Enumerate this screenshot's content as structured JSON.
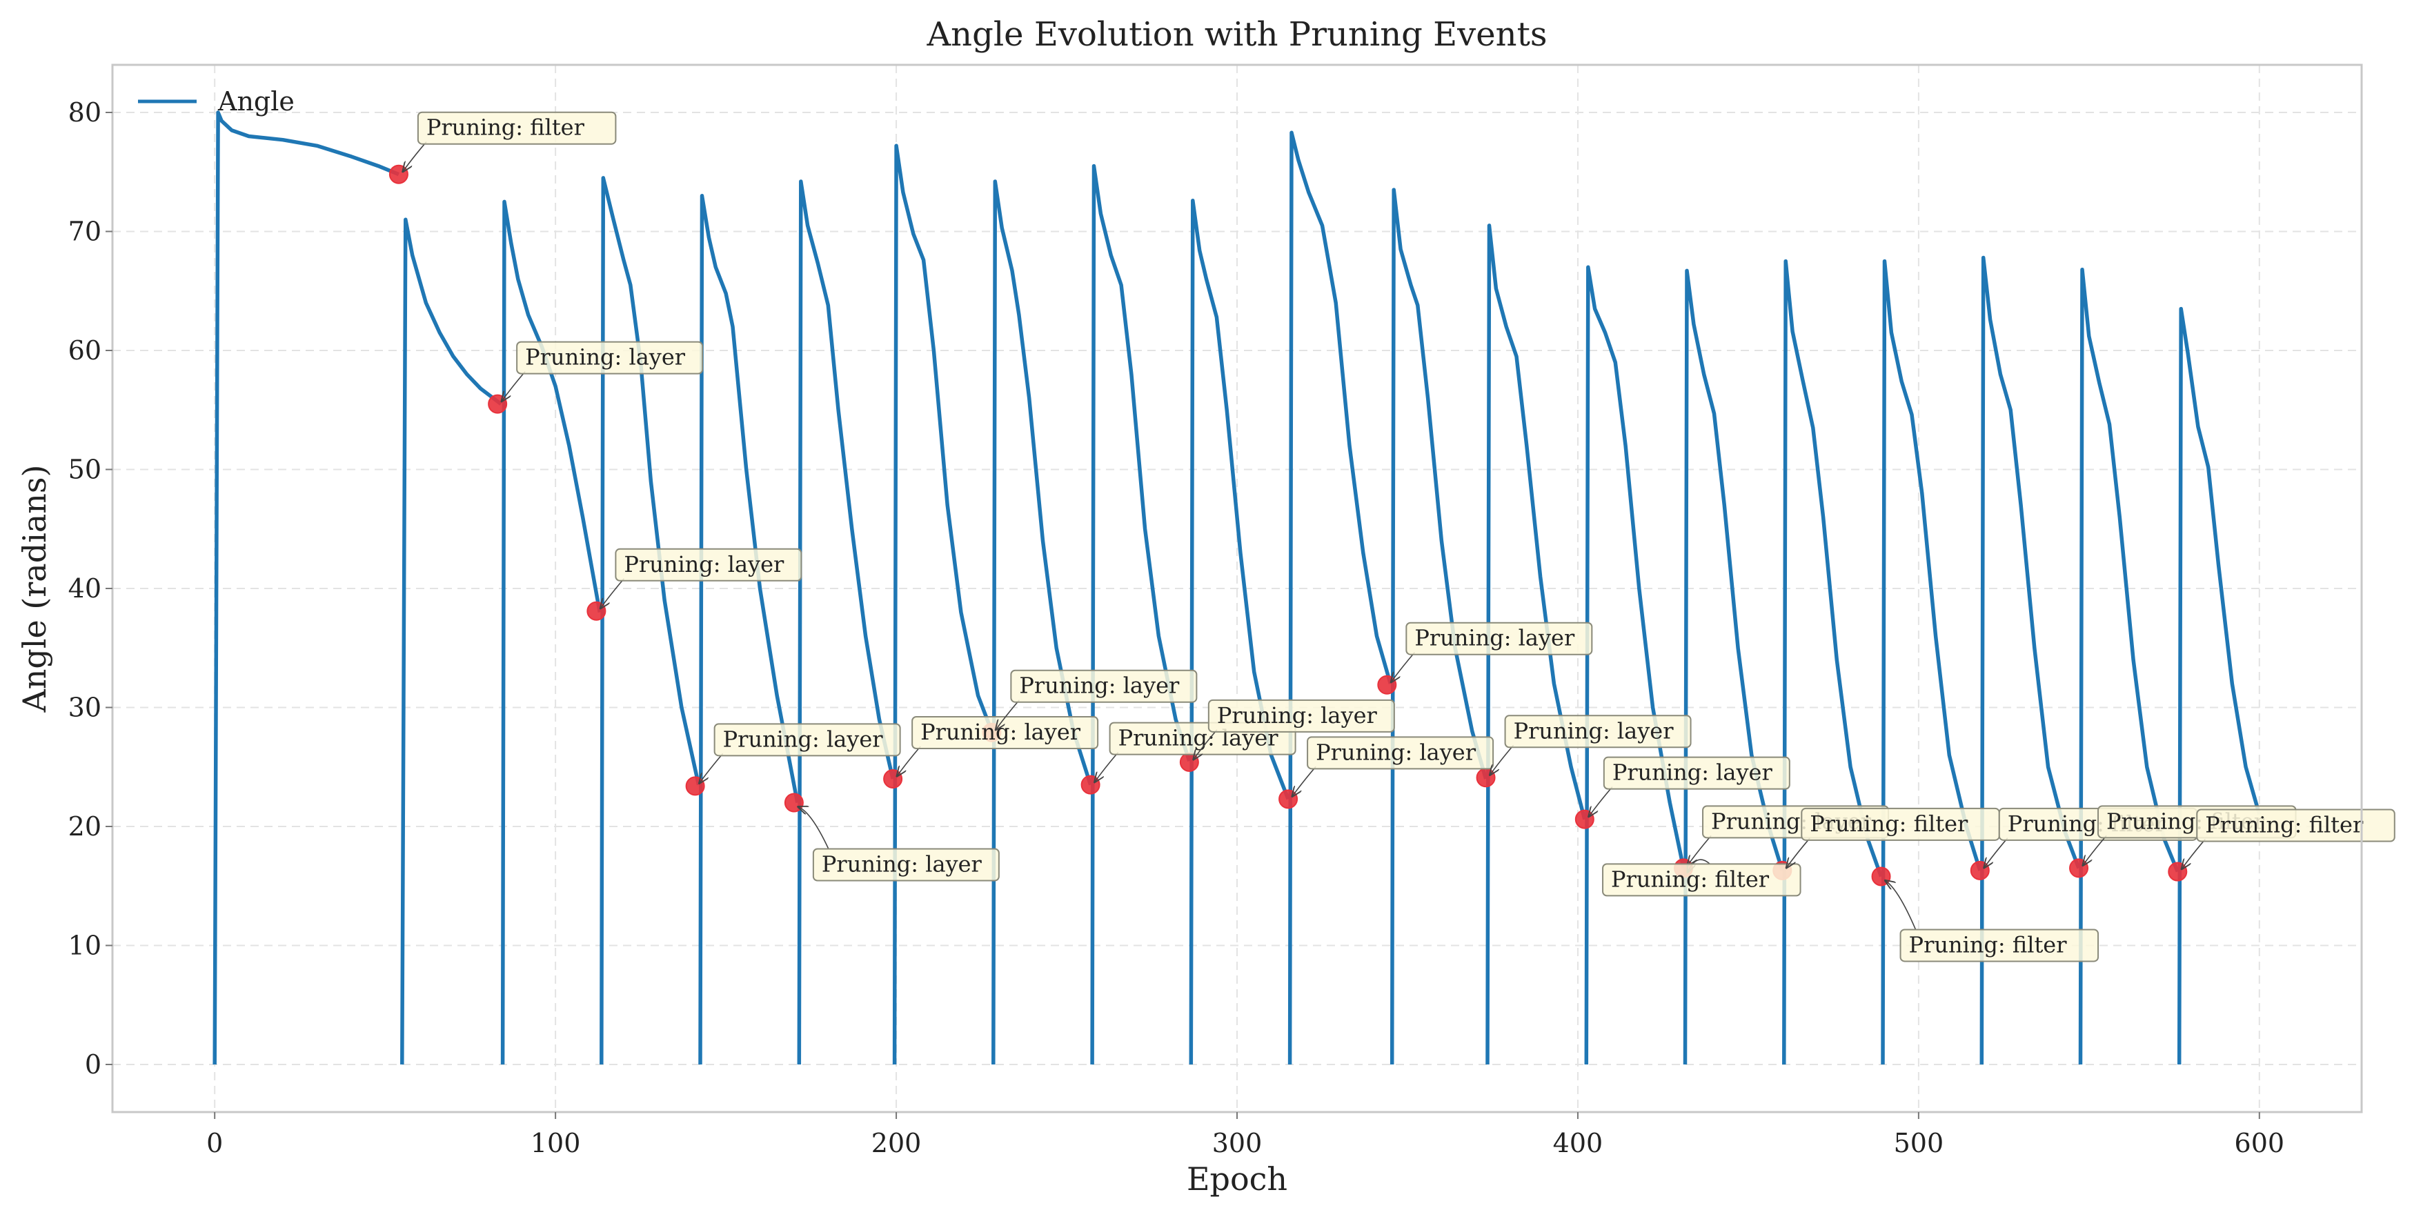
{
  "chart_data": {
    "type": "line",
    "title": "Angle Evolution with Pruning Events",
    "xlabel": "Epoch",
    "ylabel": "Angle (radians)",
    "xlim": [
      -30,
      630
    ],
    "ylim": [
      -4,
      84
    ],
    "xticks": [
      0,
      100,
      200,
      300,
      400,
      500,
      600
    ],
    "yticks": [
      0,
      10,
      20,
      30,
      40,
      50,
      60,
      70,
      80
    ],
    "grid": true,
    "legend": {
      "position": "top-left",
      "entries": [
        "Angle"
      ]
    },
    "colors": {
      "line": "#1f77b4",
      "marker": "#e8323c",
      "ann_fill": "#fdf8dc",
      "ann_edge": "#8a8a7a",
      "grid": "#e3e3e3",
      "frame": "#c8c8c8"
    },
    "series": [
      {
        "name": "Angle",
        "segments": [
          [
            [
              0,
              0
            ],
            [
              1,
              80
            ],
            [
              2,
              79.3
            ],
            [
              5,
              78.5
            ],
            [
              10,
              78
            ],
            [
              20,
              77.7
            ],
            [
              30,
              77.2
            ],
            [
              40,
              76.3
            ],
            [
              48,
              75.5
            ],
            [
              54,
              74.8
            ]
          ],
          [
            [
              55,
              0
            ],
            [
              56,
              71
            ],
            [
              58,
              68
            ],
            [
              62,
              64
            ],
            [
              66,
              61.5
            ],
            [
              70,
              59.5
            ],
            [
              74,
              58
            ],
            [
              78,
              56.8
            ],
            [
              84,
              55.5
            ]
          ],
          [
            [
              84.5,
              0
            ],
            [
              85,
              72.5
            ],
            [
              87,
              69
            ],
            [
              89,
              66
            ],
            [
              92,
              63
            ],
            [
              96,
              60.3
            ],
            [
              100,
              57
            ],
            [
              104,
              52
            ],
            [
              108,
              46
            ],
            [
              113,
              38
            ]
          ],
          [
            [
              113.5,
              0
            ],
            [
              114,
              74.5
            ],
            [
              117,
              71
            ],
            [
              120,
              67.6
            ],
            [
              122,
              65.5
            ],
            [
              125,
              59
            ],
            [
              128,
              49
            ],
            [
              132,
              39
            ],
            [
              137,
              30
            ],
            [
              142,
              23.5
            ]
          ],
          [
            [
              142.5,
              0
            ],
            [
              143,
              73
            ],
            [
              145,
              69.5
            ],
            [
              147,
              67
            ],
            [
              150,
              64.8
            ],
            [
              152,
              62
            ],
            [
              156,
              50
            ],
            [
              160,
              40
            ],
            [
              165,
              31
            ],
            [
              171,
              22
            ]
          ],
          [
            [
              171.5,
              0
            ],
            [
              172,
              74.2
            ],
            [
              174,
              70.5
            ],
            [
              177,
              67.3
            ],
            [
              180,
              63.8
            ],
            [
              183,
              55
            ],
            [
              187,
              45
            ],
            [
              191,
              36
            ],
            [
              195,
              29
            ],
            [
              199,
              24
            ]
          ],
          [
            [
              199.5,
              0
            ],
            [
              200,
              77.2
            ],
            [
              202,
              73.3
            ],
            [
              205,
              69.8
            ],
            [
              208,
              67.6
            ],
            [
              211,
              60
            ],
            [
              215,
              47
            ],
            [
              219,
              38
            ],
            [
              224,
              31
            ],
            [
              228,
              28
            ]
          ],
          [
            [
              228.5,
              0
            ],
            [
              229,
              74.2
            ],
            [
              231,
              70.3
            ],
            [
              234,
              66.7
            ],
            [
              236,
              63
            ],
            [
              239,
              56
            ],
            [
              243,
              44
            ],
            [
              247,
              35
            ],
            [
              252,
              28
            ],
            [
              257,
              23.5
            ]
          ],
          [
            [
              257.5,
              0
            ],
            [
              258,
              75.5
            ],
            [
              260,
              71.5
            ],
            [
              263,
              68
            ],
            [
              266,
              65.5
            ],
            [
              269,
              58
            ],
            [
              273,
              45
            ],
            [
              277,
              36
            ],
            [
              282,
              29
            ],
            [
              286,
              25.5
            ]
          ],
          [
            [
              286.5,
              0
            ],
            [
              287,
              72.6
            ],
            [
              289,
              68.4
            ],
            [
              291,
              66
            ],
            [
              294,
              62.8
            ],
            [
              297,
              55
            ],
            [
              301,
              43
            ],
            [
              305,
              33
            ],
            [
              310,
              26
            ],
            [
              315,
              22.3
            ]
          ],
          [
            [
              315.5,
              0
            ],
            [
              316,
              78.3
            ],
            [
              318,
              76
            ],
            [
              321,
              73.3
            ],
            [
              325,
              70.5
            ],
            [
              329,
              64
            ],
            [
              333,
              52
            ],
            [
              337,
              43
            ],
            [
              341,
              36
            ],
            [
              345,
              32
            ]
          ],
          [
            [
              345.5,
              0
            ],
            [
              346,
              73.5
            ],
            [
              348,
              68.5
            ],
            [
              351,
              65.5
            ],
            [
              353,
              63.8
            ],
            [
              356,
              56
            ],
            [
              360,
              44
            ],
            [
              364,
              35
            ],
            [
              369,
              28
            ],
            [
              373,
              24
            ]
          ],
          [
            [
              373.5,
              0
            ],
            [
              374,
              70.5
            ],
            [
              376,
              65.2
            ],
            [
              379,
              62
            ],
            [
              382,
              59.5
            ],
            [
              385,
              52
            ],
            [
              389,
              41
            ],
            [
              393,
              32
            ],
            [
              398,
              25
            ],
            [
              402,
              20.6
            ]
          ],
          [
            [
              402.5,
              0
            ],
            [
              403,
              67
            ],
            [
              405,
              63.5
            ],
            [
              408,
              61.5
            ],
            [
              411,
              59
            ],
            [
              414,
              52
            ],
            [
              418,
              40
            ],
            [
              422,
              30
            ],
            [
              427,
              22
            ],
            [
              431,
              16.5
            ]
          ],
          [
            [
              431.5,
              0
            ],
            [
              432,
              66.7
            ],
            [
              434,
              62.2
            ],
            [
              437,
              58
            ],
            [
              440,
              54.7
            ],
            [
              443,
              47
            ],
            [
              447,
              35
            ],
            [
              451,
              26
            ],
            [
              456,
              20
            ],
            [
              460,
              16.3
            ]
          ],
          [
            [
              460.5,
              0
            ],
            [
              461,
              67.5
            ],
            [
              463,
              61.6
            ],
            [
              466,
              57.5
            ],
            [
              469,
              53.5
            ],
            [
              472,
              46
            ],
            [
              476,
              34
            ],
            [
              480,
              25
            ],
            [
              485,
              19
            ],
            [
              489,
              15.8
            ]
          ],
          [
            [
              489.5,
              0
            ],
            [
              490,
              67.5
            ],
            [
              492,
              61.5
            ],
            [
              495,
              57.4
            ],
            [
              498,
              54.6
            ],
            [
              501,
              48
            ],
            [
              505,
              36
            ],
            [
              509,
              26
            ],
            [
              514,
              20
            ],
            [
              518,
              16.3
            ]
          ],
          [
            [
              518.5,
              0
            ],
            [
              519,
              67.8
            ],
            [
              521,
              62.6
            ],
            [
              524,
              58
            ],
            [
              527,
              55
            ],
            [
              530,
              47
            ],
            [
              534,
              35
            ],
            [
              538,
              25
            ],
            [
              543,
              19.5
            ],
            [
              547,
              16.5
            ]
          ],
          [
            [
              547.5,
              0
            ],
            [
              548,
              66.8
            ],
            [
              550,
              61.2
            ],
            [
              553,
              57.3
            ],
            [
              556,
              53.8
            ],
            [
              559,
              46
            ],
            [
              563,
              34
            ],
            [
              567,
              25
            ],
            [
              572,
              19
            ],
            [
              576,
              16.2
            ]
          ],
          [
            [
              576.5,
              0
            ],
            [
              577,
              63.5
            ],
            [
              579,
              59.8
            ],
            [
              582,
              53.6
            ],
            [
              585,
              50.2
            ],
            [
              588,
              42
            ],
            [
              592,
              32
            ],
            [
              596,
              25
            ],
            [
              600,
              21
            ]
          ]
        ]
      }
    ],
    "pruning_events": [
      {
        "epoch": 54,
        "angle": 74.8,
        "label": "Pruning: filter",
        "dx": 40,
        "dy": -57
      },
      {
        "epoch": 83,
        "angle": 55.5,
        "label": "Pruning: layer",
        "dx": 40,
        "dy": -57
      },
      {
        "epoch": 112,
        "angle": 38.1,
        "label": "Pruning: layer",
        "dx": 40,
        "dy": -57
      },
      {
        "epoch": 141,
        "angle": 23.4,
        "label": "Pruning: layer",
        "dx": 40,
        "dy": -57
      },
      {
        "epoch": 170,
        "angle": 22.0,
        "label": "Pruning: layer",
        "dx": 40,
        "dy": 100
      },
      {
        "epoch": 199,
        "angle": 24.0,
        "label": "Pruning: layer",
        "dx": 40,
        "dy": -57
      },
      {
        "epoch": 228,
        "angle": 27.9,
        "label": "Pruning: layer",
        "dx": 40,
        "dy": -57
      },
      {
        "epoch": 257,
        "angle": 23.5,
        "label": "Pruning: layer",
        "dx": 40,
        "dy": -57
      },
      {
        "epoch": 286,
        "angle": 25.4,
        "label": "Pruning: layer",
        "dx": 40,
        "dy": -57
      },
      {
        "epoch": 315,
        "angle": 22.3,
        "label": "Pruning: layer",
        "dx": 40,
        "dy": -57
      },
      {
        "epoch": 344,
        "angle": 31.9,
        "label": "Pruning: layer",
        "dx": 40,
        "dy": -57
      },
      {
        "epoch": 373,
        "angle": 24.1,
        "label": "Pruning: layer",
        "dx": 40,
        "dy": -57
      },
      {
        "epoch": 402,
        "angle": 20.6,
        "label": "Pruning: layer",
        "dx": 40,
        "dy": -57
      },
      {
        "epoch": 431,
        "angle": 16.5,
        "label": "Pruning: layer",
        "dx": 40,
        "dy": -57
      },
      {
        "epoch": 431,
        "angle": 16.5,
        "label": "Pruning: filter",
        "dx": -105,
        "dy": 27
      },
      {
        "epoch": 460,
        "angle": 16.3,
        "label": "Pruning: filter",
        "dx": 40,
        "dy": -57
      },
      {
        "epoch": 489,
        "angle": 15.8,
        "label": "Pruning: filter",
        "dx": 40,
        "dy": 110
      },
      {
        "epoch": 518,
        "angle": 16.3,
        "label": "Pruning: filter",
        "dx": 40,
        "dy": -57
      },
      {
        "epoch": 547,
        "angle": 16.5,
        "label": "Pruning: filter",
        "dx": 40,
        "dy": -57
      },
      {
        "epoch": 576,
        "angle": 16.2,
        "label": "Pruning: filter",
        "dx": 40,
        "dy": -57
      }
    ]
  }
}
